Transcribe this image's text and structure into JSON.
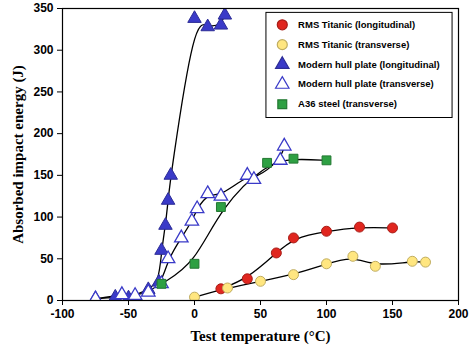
{
  "chart_data": {
    "type": "scatter",
    "x_label": "Test temperature (°C)",
    "y_label": "Absorbed impact energy (J)",
    "xlim": [
      -100,
      200
    ],
    "xticks": [
      -100,
      -50,
      0,
      50,
      100,
      150,
      200
    ],
    "ylim": [
      0,
      350
    ],
    "yticks": [
      0,
      50,
      100,
      150,
      200,
      250,
      300,
      350
    ],
    "legend": "top-right",
    "series": [
      {
        "name": "RMS Titanic (longitudinal)",
        "color": "#e0261f",
        "marker": "circle",
        "line_style": "solid",
        "x": [
          20,
          40,
          62,
          75,
          100,
          125,
          150
        ],
        "values": [
          14,
          26,
          57,
          75,
          83,
          88,
          87
        ]
      },
      {
        "name": "RMS Titanic (transverse)",
        "color": "#ffe680",
        "marker": "circle",
        "line_style": "solid",
        "x": [
          0,
          25,
          50,
          75,
          100,
          120,
          137,
          165,
          175
        ],
        "values": [
          4,
          15,
          23,
          31,
          44,
          53,
          41,
          47,
          46
        ]
      },
      {
        "name": "Modern hull plate (longitudinal)",
        "color": "#3a3ac8",
        "marker": "triangle",
        "line_style": "solid",
        "x": [
          -75,
          -60,
          -50,
          -35,
          -27,
          -25,
          -22,
          -20,
          -18,
          0,
          10,
          20,
          23
        ],
        "values": [
          2,
          4,
          3,
          13,
          22,
          60,
          90,
          120,
          150,
          338,
          328,
          330,
          342
        ]
      },
      {
        "name": "Modern hull plate (transverse)",
        "color": "#3a3ac8",
        "marker": "triangle-open",
        "line_style": "solid",
        "x": [
          -75,
          -55,
          -45,
          -35,
          -25,
          -20,
          -10,
          -2,
          2,
          10,
          20,
          40,
          45,
          65,
          68
        ],
        "values": [
          2,
          7,
          6,
          10,
          20,
          50,
          75,
          95,
          110,
          128,
          125,
          150,
          145,
          168,
          185
        ]
      },
      {
        "name": "A36 steel (transverse)",
        "color": "#2ea043",
        "marker": "square",
        "line_style": "solid",
        "x": [
          -25,
          0,
          20,
          55,
          75,
          100
        ],
        "values": [
          20,
          44,
          112,
          165,
          170,
          168
        ]
      }
    ]
  }
}
